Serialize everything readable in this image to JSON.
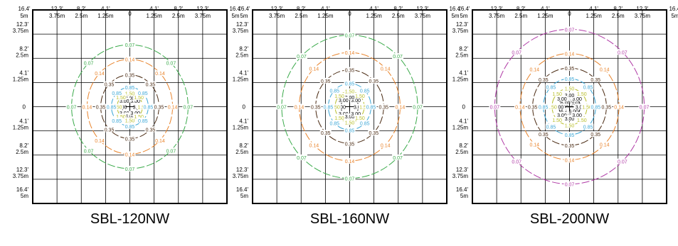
{
  "axis_tick_labels": {
    "x": [
      {
        "ft": "16.4'",
        "m": "5m"
      },
      {
        "ft": "12.3'",
        "m": "3.75m"
      },
      {
        "ft": "8.2'",
        "m": "2.5m"
      },
      {
        "ft": "4.1'",
        "m": "1.25m"
      },
      {
        "ft": "0",
        "m": ""
      },
      {
        "ft": "4.1'",
        "m": "1.25m"
      },
      {
        "ft": "8.2'",
        "m": "2.5m"
      },
      {
        "ft": "12.3'",
        "m": "3.75m"
      },
      {
        "ft": "16.4'",
        "m": "5m"
      }
    ],
    "y": [
      {
        "ft": "12.3'",
        "m": "3.75m"
      },
      {
        "ft": "8.2'",
        "m": "2.5m"
      },
      {
        "ft": "4.1'",
        "m": "1.25m"
      },
      {
        "ft": "0",
        "m": ""
      },
      {
        "ft": "4.1'",
        "m": "1.25m"
      },
      {
        "ft": "8.2'",
        "m": "2.5m"
      },
      {
        "ft": "12.3'",
        "m": "3.75m"
      },
      {
        "ft": "16.4'",
        "m": "5m"
      }
    ]
  },
  "colors": {
    "6.00": "#000000",
    "3.00": "#000000",
    "1.50": "#b8be2a",
    "0.85": "#3aa6d6",
    "0.35": "#4a2a12",
    "0.14": "#e8832b",
    "0.07": "#3aaa4a",
    "0.07-outer": "#b03aa6"
  },
  "chart_data": [
    {
      "type": "contour",
      "title": "SBL-120NW",
      "xlim": [
        -5,
        5
      ],
      "ylim": [
        -5,
        5
      ],
      "units": "m",
      "grid": true,
      "contours": [
        {
          "label": "3.00",
          "rx": 0.4,
          "ry": 0.45,
          "cx": 0,
          "cy": 0,
          "color_key": "3.00"
        },
        {
          "label": "1.50",
          "rx": 0.65,
          "ry": 0.7,
          "cx": 0,
          "cy": 0,
          "color_key": "1.50"
        },
        {
          "label": "0.85",
          "rx": 0.95,
          "ry": 1.0,
          "cx": 0,
          "cy": 0,
          "color_key": "0.85"
        },
        {
          "label": "0.35",
          "rx": 1.5,
          "ry": 1.65,
          "cx": 0,
          "cy": 0,
          "color_key": "0.35"
        },
        {
          "label": "0.14",
          "rx": 2.2,
          "ry": 2.45,
          "cx": 0,
          "cy": 0,
          "color_key": "0.14"
        },
        {
          "label": "0.07",
          "rx": 3.0,
          "ry": 3.2,
          "cx": 0,
          "cy": 0,
          "color_key": "0.07"
        }
      ]
    },
    {
      "type": "contour",
      "title": "SBL-160NW",
      "xlim": [
        -5,
        5
      ],
      "ylim": [
        -5,
        5
      ],
      "units": "m",
      "grid": true,
      "contours": [
        {
          "label": "3.00",
          "rx": 0.45,
          "ry": 0.5,
          "cx": 0,
          "cy": 0,
          "color_key": "3.00"
        },
        {
          "label": "1.50",
          "rx": 0.75,
          "ry": 0.8,
          "cx": 0,
          "cy": 0,
          "color_key": "1.50"
        },
        {
          "label": "0.85",
          "rx": 1.1,
          "ry": 1.2,
          "cx": 0,
          "cy": 0,
          "color_key": "0.85"
        },
        {
          "label": "0.35",
          "rx": 1.75,
          "ry": 1.9,
          "cx": 0,
          "cy": 0,
          "color_key": "0.35"
        },
        {
          "label": "0.14",
          "rx": 2.6,
          "ry": 2.8,
          "cx": 0,
          "cy": 0,
          "color_key": "0.14"
        },
        {
          "label": "0.07",
          "rx": 3.5,
          "ry": 3.7,
          "cx": 0,
          "cy": 0,
          "color_key": "0.07"
        }
      ]
    },
    {
      "type": "contour",
      "title": "SBL-200NW",
      "xlim": [
        -5,
        5
      ],
      "ylim": [
        -5,
        5
      ],
      "units": "m",
      "grid": true,
      "contours": [
        {
          "label": "6.00",
          "rx": 0.3,
          "ry": 0.3,
          "cx": 0,
          "cy": 0,
          "color_key": "6.00"
        },
        {
          "label": "3.00",
          "rx": 0.55,
          "ry": 0.6,
          "cx": 0,
          "cy": 0,
          "color_key": "3.00"
        },
        {
          "label": "1.50",
          "rx": 0.9,
          "ry": 0.95,
          "cx": 0,
          "cy": 0,
          "color_key": "1.50"
        },
        {
          "label": "0.85",
          "rx": 1.35,
          "ry": 1.45,
          "cx": 0,
          "cy": 0,
          "color_key": "0.85"
        },
        {
          "label": "0.35",
          "rx": 1.9,
          "ry": 2.0,
          "cx": 0,
          "cy": 0,
          "color_key": "0.35"
        },
        {
          "label": "0.14",
          "rx": 2.55,
          "ry": 2.75,
          "cx": 0,
          "cy": 0,
          "color_key": "0.14"
        },
        {
          "label": "0.07",
          "rx": 3.85,
          "ry": 4.0,
          "cx": 0,
          "cy": 0,
          "color_key": "0.07-outer"
        }
      ]
    }
  ]
}
